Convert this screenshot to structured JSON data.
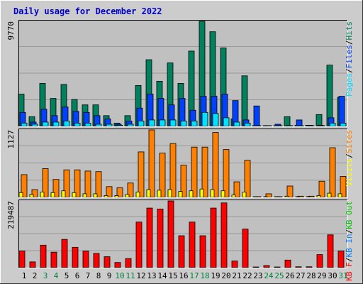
{
  "colors": {
    "outer_bg": "#cccccc",
    "panel_bg": "#c0c0c0",
    "grid": "#999999",
    "title": "#0000cc",
    "axis_text": "#000000",
    "weekend_text": "#007f3f",
    "hits": "#00805c",
    "files": "#0040ff",
    "pages": "#00e0ff",
    "visits": "#ffff00",
    "sites": "#ff8000",
    "kb_in": "#0080ff",
    "kb_out": "#00c000",
    "kb_f": "#ff0000"
  },
  "chart_data": {
    "type": "bar",
    "title": "Daily usage for December 2022",
    "categories": [
      "1",
      "2",
      "3",
      "4",
      "5",
      "6",
      "7",
      "8",
      "9",
      "10",
      "11",
      "12",
      "13",
      "14",
      "15",
      "16",
      "17",
      "18",
      "19",
      "20",
      "21",
      "22",
      "23",
      "24",
      "25",
      "26",
      "27",
      "28",
      "29",
      "30",
      "31"
    ],
    "weekend_days": [
      "3",
      "4",
      "10",
      "11",
      "17",
      "18",
      "24",
      "25",
      "31"
    ],
    "panels": [
      {
        "id": "hits_files_pages",
        "ymax_label": "9770",
        "ymax": 9770,
        "legend": [
          {
            "text": "Pages",
            "color_key": "pages"
          },
          {
            "text": "/",
            "color_key": "axis_text"
          },
          {
            "text": "Files",
            "color_key": "files"
          },
          {
            "text": "/",
            "color_key": "axis_text"
          },
          {
            "text": "Hits",
            "color_key": "hits"
          }
        ],
        "series": [
          {
            "name": "Hits",
            "color_key": "hits",
            "values": [
              3000,
              900,
              4000,
              2600,
              3900,
              2500,
              2000,
              2000,
              1000,
              300,
              1000,
              3800,
              6200,
              4200,
              5900,
              4000,
              7000,
              9770,
              8800,
              7300,
              700,
              4700,
              0,
              0,
              0,
              900,
              100,
              100,
              1100,
              5700,
              2700
            ]
          },
          {
            "name": "Files",
            "color_key": "files",
            "values": [
              1300,
              400,
              1600,
              1000,
              1800,
              1400,
              1300,
              1000,
              700,
              200,
              500,
              1700,
              3000,
              2600,
              2000,
              2600,
              1500,
              2800,
              2800,
              3000,
              2400,
              600,
              1900,
              0,
              200,
              0,
              600,
              100,
              100,
              800,
              2800
            ]
          },
          {
            "name": "Pages",
            "color_key": "pages",
            "values": [
              300,
              200,
              400,
              400,
              500,
              300,
              300,
              200,
              200,
              100,
              200,
              500,
              600,
              600,
              600,
              500,
              500,
              1300,
              1200,
              800,
              400,
              300,
              0,
              0,
              0,
              0,
              0,
              0,
              0,
              300,
              300
            ]
          }
        ]
      },
      {
        "id": "visits_sites",
        "ymax_label": "1127",
        "ymax": 1127,
        "legend": [
          {
            "text": "Visits",
            "color_key": "visits"
          },
          {
            "text": "/",
            "color_key": "axis_text"
          },
          {
            "text": "Sites",
            "color_key": "sites"
          }
        ],
        "series": [
          {
            "name": "Sites",
            "color_key": "sites",
            "values": [
              380,
              130,
              480,
              300,
              460,
              460,
              440,
              430,
              180,
              160,
              240,
              760,
              1127,
              740,
              900,
              540,
              840,
              840,
              1084,
              800,
              260,
              620,
              0,
              60,
              0,
              190,
              20,
              20,
              270,
              830,
              350
            ]
          },
          {
            "name": "Visits",
            "color_key": "visits",
            "values": [
              80,
              50,
              90,
              80,
              110,
              80,
              60,
              60,
              30,
              30,
              50,
              90,
              130,
              120,
              130,
              100,
              110,
              140,
              130,
              110,
              40,
              90,
              0,
              0,
              0,
              20,
              0,
              0,
              30,
              70,
              60
            ]
          }
        ]
      },
      {
        "id": "kbytes",
        "ymax_label": "219487",
        "ymax": 219487,
        "legend": [
          {
            "text": "KB F",
            "color_key": "kb_f"
          },
          {
            "text": "/",
            "color_key": "axis_text"
          },
          {
            "text": "KB In",
            "color_key": "kb_in"
          },
          {
            "text": "/",
            "color_key": "axis_text"
          },
          {
            "text": "KB Out",
            "color_key": "kb_out"
          }
        ],
        "series": [
          {
            "name": "KB F",
            "color_key": "kb_f",
            "values": [
              55000,
              19000,
              74000,
              51000,
              93000,
              67000,
              55000,
              47000,
              36000,
              17000,
              30000,
              150000,
              196000,
              193000,
              219487,
              105000,
              150000,
              105000,
              196000,
              213000,
              22000,
              127000,
              0,
              7000,
              0,
              25000,
              3000,
              3000,
              43000,
              108000,
              55000
            ]
          }
        ]
      }
    ]
  }
}
